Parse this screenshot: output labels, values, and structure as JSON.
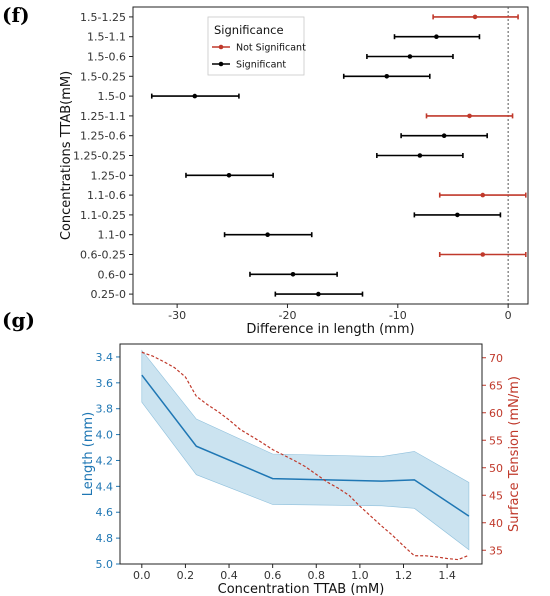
{
  "chart_data": [
    {
      "type": "errorbar",
      "panel_label": "(f)",
      "xlabel": "Difference in length (mm)",
      "ylabel": "Concentrations TTAB(mM)",
      "xlim": [
        -34,
        1.8
      ],
      "xticks": [
        -30,
        -20,
        -10,
        0
      ],
      "reference_line_x": 0,
      "legend": {
        "title": "Significance",
        "position": "top-left",
        "entries": [
          {
            "label": "Not Significant",
            "color": "#c0392b"
          },
          {
            "label": "Significant",
            "color": "#000000"
          }
        ]
      },
      "comparisons": [
        {
          "label": "1.5-1.25",
          "estimate": -3.0,
          "lower": -6.8,
          "upper": 0.9,
          "significant": false
        },
        {
          "label": "1.5-1.1",
          "estimate": -6.5,
          "lower": -10.3,
          "upper": -2.6,
          "significant": true
        },
        {
          "label": "1.5-0.6",
          "estimate": -8.9,
          "lower": -12.8,
          "upper": -5.0,
          "significant": true
        },
        {
          "label": "1.5-0.25",
          "estimate": -11.0,
          "lower": -14.9,
          "upper": -7.1,
          "significant": true
        },
        {
          "label": "1.5-0",
          "estimate": -28.4,
          "lower": -32.3,
          "upper": -24.4,
          "significant": true
        },
        {
          "label": "1.25-1.1",
          "estimate": -3.5,
          "lower": -7.4,
          "upper": 0.4,
          "significant": false
        },
        {
          "label": "1.25-0.6",
          "estimate": -5.8,
          "lower": -9.7,
          "upper": -1.9,
          "significant": true
        },
        {
          "label": "1.25-0.25",
          "estimate": -8.0,
          "lower": -11.9,
          "upper": -4.1,
          "significant": true
        },
        {
          "label": "1.25-0",
          "estimate": -25.3,
          "lower": -29.2,
          "upper": -21.3,
          "significant": true
        },
        {
          "label": "1.1-0.6",
          "estimate": -2.3,
          "lower": -6.2,
          "upper": 1.6,
          "significant": false
        },
        {
          "label": "1.1-0.25",
          "estimate": -4.6,
          "lower": -8.5,
          "upper": -0.7,
          "significant": true
        },
        {
          "label": "1.1-0",
          "estimate": -21.8,
          "lower": -25.7,
          "upper": -17.8,
          "significant": true
        },
        {
          "label": "0.6-0.25",
          "estimate": -2.3,
          "lower": -6.2,
          "upper": 1.6,
          "significant": false
        },
        {
          "label": "0.6-0",
          "estimate": -19.5,
          "lower": -23.4,
          "upper": -15.5,
          "significant": true
        },
        {
          "label": "0.25-0",
          "estimate": -17.2,
          "lower": -21.1,
          "upper": -13.2,
          "significant": true
        }
      ]
    },
    {
      "type": "line",
      "panel_label": "(g)",
      "xlabel": "Concentration TTAB (mM)",
      "ylabel_left": "Length (mm)",
      "ylabel_right": "Surface Tension (mN/m)",
      "xlim": [
        -0.1,
        1.56
      ],
      "ylim_left": [
        5.0,
        3.3
      ],
      "ylim_left_inverted": true,
      "ylim_right": [
        32.5,
        72.5
      ],
      "xticks": [
        0.0,
        0.2,
        0.4,
        0.6,
        0.8,
        1.0,
        1.2,
        1.4
      ],
      "yticks_left": [
        3.4,
        3.6,
        3.8,
        4.0,
        4.2,
        4.4,
        4.6,
        4.8,
        5.0
      ],
      "yticks_right": [
        35,
        40,
        45,
        50,
        55,
        60,
        65,
        70
      ],
      "left_axis_color": "#1f77b4",
      "right_axis_color": "#c0392b",
      "band_color": "#a8d0e6",
      "series": [
        {
          "axis": "left",
          "style": "solid",
          "color": "#1f77b4",
          "x": [
            0.0,
            0.25,
            0.6,
            1.1,
            1.25,
            1.5
          ],
          "y": [
            3.54,
            4.09,
            4.34,
            4.36,
            4.35,
            4.63
          ],
          "lower": [
            3.35,
            3.88,
            4.15,
            4.17,
            4.13,
            4.37
          ],
          "upper": [
            3.75,
            4.31,
            4.54,
            4.55,
            4.57,
            4.89
          ]
        },
        {
          "axis": "right",
          "style": "dashed",
          "color": "#c0392b",
          "x": [
            0.0,
            0.05,
            0.1,
            0.15,
            0.2,
            0.25,
            0.3,
            0.35,
            0.4,
            0.45,
            0.5,
            0.55,
            0.6,
            0.65,
            0.7,
            0.75,
            0.8,
            0.85,
            0.9,
            0.95,
            1.0,
            1.05,
            1.1,
            1.15,
            1.2,
            1.25,
            1.3,
            1.35,
            1.4,
            1.45,
            1.5
          ],
          "y": [
            71.0,
            70.3,
            69.3,
            68.2,
            66.5,
            63.0,
            61.5,
            60.2,
            58.7,
            57.0,
            55.8,
            54.6,
            53.3,
            52.3,
            51.3,
            50.2,
            48.8,
            47.4,
            46.3,
            45.0,
            43.0,
            41.2,
            39.4,
            37.7,
            35.8,
            34.0,
            34.0,
            33.8,
            33.5,
            33.3,
            34.1
          ]
        }
      ]
    }
  ]
}
